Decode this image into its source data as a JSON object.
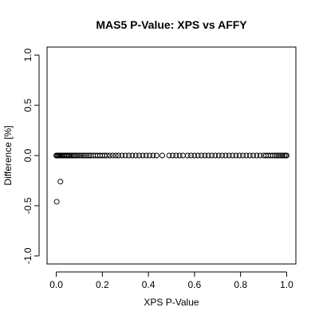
{
  "chart_data": {
    "type": "scatter",
    "title": "MAS5 P-Value: XPS vs AFFY",
    "xlabel": "XPS P-Value",
    "ylabel": "Difference [%]",
    "xlim": [
      -0.04,
      1.04
    ],
    "ylim": [
      -1.08,
      1.08
    ],
    "xticks": [
      0.0,
      0.2,
      0.4,
      0.6,
      0.8,
      1.0
    ],
    "xtick_labels": [
      "0.0",
      "0.2",
      "0.4",
      "0.6",
      "0.8",
      "1.0"
    ],
    "yticks": [
      -1.0,
      -0.5,
      0.0,
      0.5,
      1.0
    ],
    "ytick_labels": [
      "-1.0",
      "-0.5",
      "0.0",
      "0.5",
      "1.0"
    ],
    "grid": false,
    "outliers": [
      {
        "x": 0.002,
        "y": -0.46
      },
      {
        "x": 0.018,
        "y": -0.26
      }
    ],
    "x": [
      0.0,
      0.004,
      0.008,
      0.012,
      0.016,
      0.02,
      0.025,
      0.03,
      0.035,
      0.04,
      0.045,
      0.05,
      0.055,
      0.06,
      0.066,
      0.072,
      0.078,
      0.085,
      0.092,
      0.1,
      0.108,
      0.116,
      0.124,
      0.133,
      0.142,
      0.15,
      0.16,
      0.17,
      0.18,
      0.19,
      0.2,
      0.21,
      0.22,
      0.232,
      0.245,
      0.258,
      0.27,
      0.285,
      0.3,
      0.315,
      0.33,
      0.345,
      0.36,
      0.375,
      0.39,
      0.405,
      0.42,
      0.435,
      0.46,
      0.49,
      0.505,
      0.52,
      0.535,
      0.55,
      0.57,
      0.585,
      0.6,
      0.615,
      0.63,
      0.645,
      0.66,
      0.675,
      0.69,
      0.705,
      0.72,
      0.735,
      0.75,
      0.765,
      0.78,
      0.795,
      0.81,
      0.825,
      0.84,
      0.855,
      0.87,
      0.885,
      0.9,
      0.91,
      0.92,
      0.93,
      0.94,
      0.95,
      0.958,
      0.966,
      0.974,
      0.982,
      0.99,
      0.996,
      1.0
    ],
    "y": [
      0,
      0,
      0,
      0,
      0,
      0,
      0,
      0,
      0,
      0,
      0,
      0,
      0,
      0,
      0,
      0,
      0,
      0,
      0,
      0,
      0,
      0,
      0,
      0,
      0,
      0,
      0,
      0,
      0,
      0,
      0,
      0,
      0,
      0,
      0,
      0,
      0,
      0,
      0,
      0,
      0,
      0,
      0,
      0,
      0,
      0,
      0,
      0,
      0,
      0,
      0,
      0,
      0,
      0,
      0,
      0,
      0,
      0,
      0,
      0,
      0,
      0,
      0,
      0,
      0,
      0,
      0,
      0,
      0,
      0,
      0,
      0,
      0,
      0,
      0,
      0,
      0,
      0,
      0,
      0,
      0,
      0,
      0,
      0,
      0,
      0,
      0,
      0,
      0
    ]
  }
}
